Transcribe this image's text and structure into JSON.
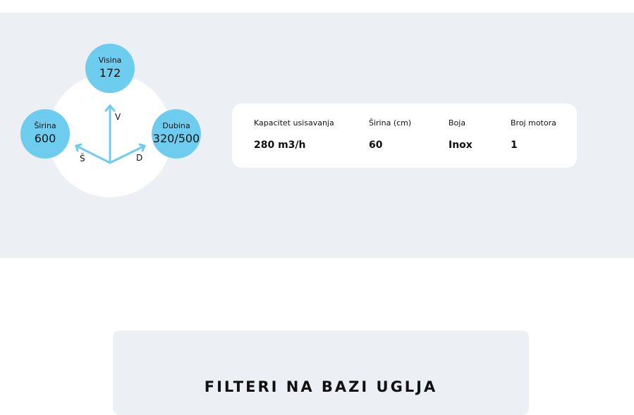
{
  "dimensions": {
    "height": {
      "label": "Visina",
      "value": "172"
    },
    "width": {
      "label": "Širina",
      "value": "600"
    },
    "depth": {
      "label": "Dubina",
      "value": "320/500"
    },
    "axes": {
      "v": "V",
      "s": "Š",
      "d": "D"
    }
  },
  "specs": [
    {
      "label": "Kapacitet usisavanja",
      "value": "280 m3/h"
    },
    {
      "label": "Širina (cm)",
      "value": "60"
    },
    {
      "label": "Boja",
      "value": "Inox"
    },
    {
      "label": "Broj motora",
      "value": "1"
    }
  ],
  "section": {
    "title": "FILTERI NA BAZI UGLJA"
  },
  "colors": {
    "accent": "#6ecdef",
    "background": "#eceff4"
  }
}
